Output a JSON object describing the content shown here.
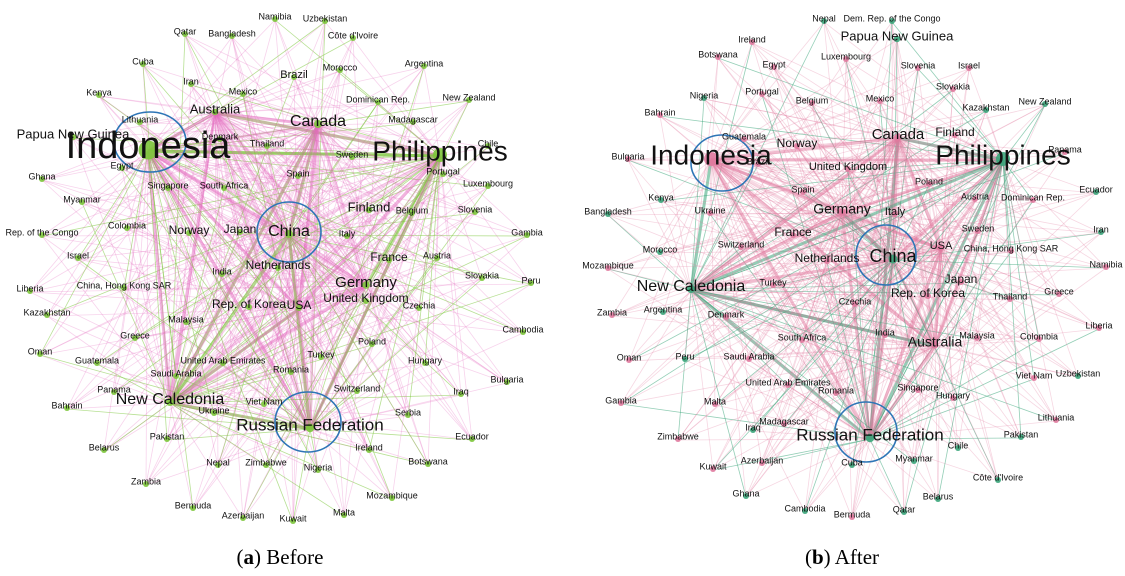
{
  "panels": [
    {
      "caption": [
        "(",
        "a",
        ") Before"
      ],
      "nodes": [
        "Namibia",
        "Uzbekistan",
        "Qatar",
        "Bangladesh",
        "Côte d'Ivoire",
        "Cuba",
        "Iran",
        "Mexico",
        "Brazil",
        "Morocco",
        "Argentina",
        "Kenya",
        "Australia",
        "New Zealand",
        "Dominican Rep.",
        "Lithuania",
        "Madagascar",
        "Canada",
        "Papua New Guinea",
        "Denmark",
        "Chile",
        "Indonesia",
        "Egypt",
        "Thailand",
        "Sweden",
        "Philippines",
        "Portugal",
        "Ghana",
        "Singapore",
        "South Africa",
        "Spain",
        "Luxembourg",
        "Myanmar",
        "Finland",
        "Belgium",
        "Slovenia",
        "Colombia",
        "Norway",
        "Japan",
        "China",
        "Italy",
        "Gambia",
        "Rep. of the Congo",
        "Israel",
        "Netherlands",
        "France",
        "Austria",
        "India",
        "Germany",
        "Slovakia",
        "Peru",
        "Liberia",
        "China, Hong Kong SAR",
        "United Kingdom",
        "Czechia",
        "Rep. of Korea",
        "USA",
        "Kazakhstan",
        "Malaysia",
        "Cambodia",
        "Greece",
        "Oman",
        "Guatemala",
        "United Arab Emirates",
        "Turkey",
        "Poland",
        "Hungary",
        "Saudi Arabia",
        "Romania",
        "Panama",
        "Bahrain",
        "New Caledonia",
        "Viet Nam",
        "Switzerland",
        "Iraq",
        "Bulgaria",
        "Ukraine",
        "Russian Federation",
        "Serbia",
        "Pakistan",
        "Belarus",
        "Ireland",
        "Ecuador",
        "Nepal",
        "Zimbabwe",
        "Nigeria",
        "Botswana",
        "Zambia",
        "Bermuda",
        "Mozambique",
        "Azerbaijan",
        "Kuwait",
        "Malta"
      ]
    },
    {
      "caption": [
        "(",
        "b",
        ") After"
      ],
      "nodes": [
        "Nepal",
        "Dem. Rep. of the Congo",
        "Papua New Guinea",
        "Ireland",
        "Botswana",
        "Luxembourg",
        "Egypt",
        "Slovenia",
        "Israel",
        "Nigeria",
        "Portugal",
        "Mexico",
        "Slovakia",
        "New Zealand",
        "Belgium",
        "Kazakhstan",
        "Bahrain",
        "Guatemala",
        "Norway",
        "Canada",
        "Finland",
        "Indonesia",
        "Philippines",
        "Bulgaria",
        "Brazil",
        "United Kingdom",
        "Poland",
        "Panama",
        "Kenya",
        "Spain",
        "Austria",
        "Dominican Rep.",
        "Ecuador",
        "Bangladesh",
        "Ukraine",
        "Germany",
        "Italy",
        "Sweden",
        "Iran",
        "Switzerland",
        "France",
        "China",
        "USA",
        "China, Hong Kong SAR",
        "Morocco",
        "Mozambique",
        "Netherlands",
        "Namibia",
        "Japan",
        "New Caledonia",
        "Turkey",
        "Greece",
        "Rep. of Korea",
        "Thailand",
        "Argentina",
        "Czechia",
        "Zambia",
        "Denmark",
        "Liberia",
        "India",
        "Malaysia",
        "Colombia",
        "South Africa",
        "Australia",
        "Oman",
        "Peru",
        "Saudi Arabia",
        "Viet Nam",
        "Uzbekistan",
        "United Arab Emirates",
        "Romania",
        "Singapore",
        "Hungary",
        "Gambia",
        "Malta",
        "Lithuania",
        "Madagascar",
        "Iraq",
        "Russian Federation",
        "Pakistan",
        "Chile",
        "Zimbabwe",
        "Azerbaijan",
        "Cuba",
        "Myanmar",
        "Kuwait",
        "Côte d'Ivoire",
        "Ghana",
        "Belarus",
        "Cambodia",
        "Bermuda",
        "Qatar"
      ]
    }
  ]
}
